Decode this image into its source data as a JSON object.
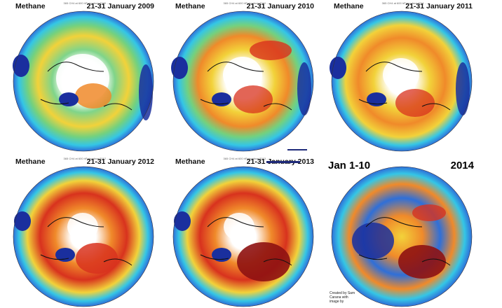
{
  "panels": [
    {
      "label": "Methane",
      "date": "21-31 January 2009",
      "subtitle": "365 CH4 at 600 hPa/surface 2009 ..."
    },
    {
      "label": "Methane",
      "date": "21-31 January 2010",
      "subtitle": "365 CH4 at 600 hPa/surface 2010 ..."
    },
    {
      "label": "Methane",
      "date": "21-31 January 2011",
      "subtitle": "365 CH4 at 600 hPa/surface 2011 ..."
    },
    {
      "label": "Methane",
      "date": "21-31 January 2012",
      "subtitle": "365 CH4 at 600 hPa/surface 2012 ..."
    },
    {
      "label": "Methane",
      "date": "21-31 January 2013",
      "subtitle": "365 CH4 at 600 hPa/surface 2013 ..."
    },
    {
      "label": "Jan 1-10",
      "date": "2014",
      "subtitle": "",
      "credit": "Created by Sam Carana with image by"
    }
  ],
  "palette": {
    "deep_blue": "#1a2f9e",
    "blue": "#2f6fd8",
    "cyan": "#34c6e6",
    "green": "#74d17e",
    "yellow": "#f2d23a",
    "orange": "#f08a2a",
    "red": "#d8321e",
    "dark_red": "#8e1212",
    "missing": "#ffffff",
    "coastline": "#111111"
  }
}
